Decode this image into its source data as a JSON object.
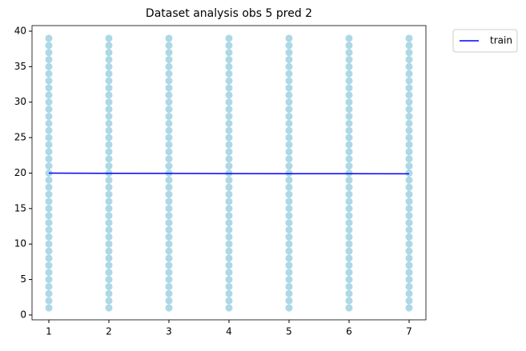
{
  "chart_data": {
    "type": "scatter",
    "title": "Dataset analysis obs 5 pred 2",
    "xlim": [
      0.72,
      7.28
    ],
    "ylim": [
      -0.68,
      40.79
    ],
    "xticks": [
      1,
      2,
      3,
      4,
      5,
      6,
      7
    ],
    "yticks": [
      0,
      5,
      10,
      15,
      20,
      25,
      30,
      35,
      40
    ],
    "legend": "outside upper right",
    "series": [
      {
        "type": "scatter",
        "color": "#add8e6",
        "x": [
          1,
          1,
          1,
          1,
          1,
          1,
          1,
          1,
          1,
          1,
          1,
          1,
          1,
          1,
          1,
          1,
          1,
          1,
          1,
          1,
          1,
          1,
          1,
          1,
          1,
          1,
          1,
          1,
          1,
          1,
          1,
          1,
          1,
          1,
          1,
          1,
          1,
          1,
          1,
          2,
          2,
          2,
          2,
          2,
          2,
          2,
          2,
          2,
          2,
          2,
          2,
          2,
          2,
          2,
          2,
          2,
          2,
          2,
          2,
          2,
          2,
          2,
          2,
          2,
          2,
          2,
          2,
          2,
          2,
          2,
          2,
          2,
          2,
          2,
          2,
          2,
          2,
          2,
          3,
          3,
          3,
          3,
          3,
          3,
          3,
          3,
          3,
          3,
          3,
          3,
          3,
          3,
          3,
          3,
          3,
          3,
          3,
          3,
          3,
          3,
          3,
          3,
          3,
          3,
          3,
          3,
          3,
          3,
          3,
          3,
          3,
          3,
          3,
          3,
          3,
          3,
          3,
          4,
          4,
          4,
          4,
          4,
          4,
          4,
          4,
          4,
          4,
          4,
          4,
          4,
          4,
          4,
          4,
          4,
          4,
          4,
          4,
          4,
          4,
          4,
          4,
          4,
          4,
          4,
          4,
          4,
          4,
          4,
          4,
          4,
          4,
          4,
          4,
          4,
          4,
          4,
          5,
          5,
          5,
          5,
          5,
          5,
          5,
          5,
          5,
          5,
          5,
          5,
          5,
          5,
          5,
          5,
          5,
          5,
          5,
          5,
          5,
          5,
          5,
          5,
          5,
          5,
          5,
          5,
          5,
          5,
          5,
          5,
          5,
          5,
          5,
          5,
          5,
          5,
          5,
          6,
          6,
          6,
          6,
          6,
          6,
          6,
          6,
          6,
          6,
          6,
          6,
          6,
          6,
          6,
          6,
          6,
          6,
          6,
          6,
          6,
          6,
          6,
          6,
          6,
          6,
          6,
          6,
          6,
          6,
          6,
          6,
          6,
          6,
          6,
          6,
          6,
          6,
          6,
          7,
          7,
          7,
          7,
          7,
          7,
          7,
          7,
          7,
          7,
          7,
          7,
          7,
          7,
          7,
          7,
          7,
          7,
          7,
          7,
          7,
          7,
          7,
          7,
          7,
          7,
          7,
          7,
          7,
          7,
          7,
          7,
          7,
          7,
          7,
          7,
          7,
          7,
          7
        ],
        "values": [
          1,
          2,
          3,
          4,
          5,
          6,
          7,
          8,
          9,
          10,
          11,
          12,
          13,
          14,
          15,
          16,
          17,
          18,
          19,
          20,
          21,
          22,
          23,
          24,
          25,
          26,
          27,
          28,
          29,
          30,
          31,
          32,
          33,
          34,
          35,
          36,
          37,
          38,
          39,
          1,
          2,
          3,
          4,
          5,
          6,
          7,
          8,
          9,
          10,
          11,
          12,
          13,
          14,
          15,
          16,
          17,
          18,
          19,
          20,
          21,
          22,
          23,
          24,
          25,
          26,
          27,
          28,
          29,
          30,
          31,
          32,
          33,
          34,
          35,
          36,
          37,
          38,
          39,
          1,
          2,
          3,
          4,
          5,
          6,
          7,
          8,
          9,
          10,
          11,
          12,
          13,
          14,
          15,
          16,
          17,
          18,
          19,
          20,
          21,
          22,
          23,
          24,
          25,
          26,
          27,
          28,
          29,
          30,
          31,
          32,
          33,
          34,
          35,
          36,
          37,
          38,
          39,
          1,
          2,
          3,
          4,
          5,
          6,
          7,
          8,
          9,
          10,
          11,
          12,
          13,
          14,
          15,
          16,
          17,
          18,
          19,
          20,
          21,
          22,
          23,
          24,
          25,
          26,
          27,
          28,
          29,
          30,
          31,
          32,
          33,
          34,
          35,
          36,
          37,
          38,
          39,
          1,
          2,
          3,
          4,
          5,
          6,
          7,
          8,
          9,
          10,
          11,
          12,
          13,
          14,
          15,
          16,
          17,
          18,
          19,
          20,
          21,
          22,
          23,
          24,
          25,
          26,
          27,
          28,
          29,
          30,
          31,
          32,
          33,
          34,
          35,
          36,
          37,
          38,
          39,
          1,
          2,
          3,
          4,
          5,
          6,
          7,
          8,
          9,
          10,
          11,
          12,
          13,
          14,
          15,
          16,
          17,
          18,
          19,
          20,
          21,
          22,
          23,
          24,
          25,
          26,
          27,
          28,
          29,
          30,
          31,
          32,
          33,
          34,
          35,
          36,
          37,
          38,
          39,
          1,
          2,
          3,
          4,
          5,
          6,
          7,
          8,
          9,
          10,
          11,
          12,
          13,
          14,
          15,
          16,
          17,
          18,
          19,
          20,
          21,
          22,
          23,
          24,
          25,
          26,
          27,
          28,
          29,
          30,
          31,
          32,
          33,
          34,
          35,
          36,
          37,
          38,
          39
        ]
      },
      {
        "type": "line",
        "name": "train",
        "color": "#0000ff",
        "x": [
          1,
          2,
          3,
          4,
          5,
          6,
          7
        ],
        "values": [
          20.0,
          19.97,
          19.95,
          19.93,
          19.92,
          19.91,
          19.9
        ]
      }
    ]
  }
}
